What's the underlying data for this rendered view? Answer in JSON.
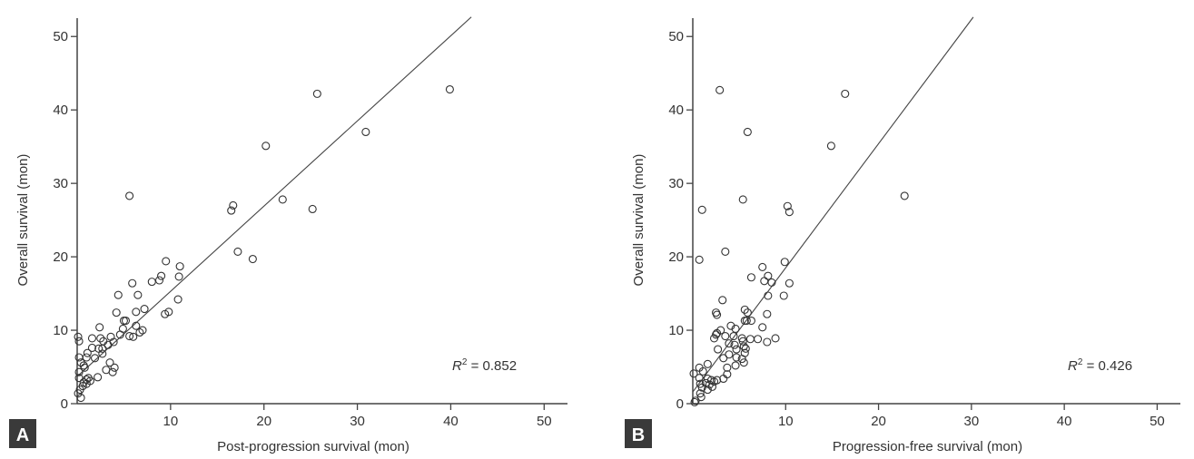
{
  "chart_data": [
    {
      "type": "scatter",
      "panel_label": "A",
      "xlabel": "Post-progression survival (mon)",
      "ylabel": "Overall survival (mon)",
      "xlim": [
        0,
        52.5
      ],
      "ylim": [
        0,
        52.5
      ],
      "xticks": [
        10,
        20,
        30,
        40,
        50
      ],
      "yticks": [
        0,
        10,
        20,
        30,
        40,
        50
      ],
      "annotation": {
        "prefix": "R",
        "sup": "2",
        "text": " = 0.852",
        "value": 0.852
      },
      "fit_line": {
        "intercept": 3.7,
        "slope": 1.16,
        "x_range": [
          0,
          42.2
        ]
      },
      "marker": "open-circle",
      "color": "#333333",
      "points": [
        [
          9.5,
          19.4
        ],
        [
          11.0,
          18.7
        ],
        [
          5.9,
          16.4
        ],
        [
          8.0,
          16.6
        ],
        [
          9.0,
          17.4
        ],
        [
          8.8,
          16.8
        ],
        [
          10.9,
          17.3
        ],
        [
          4.4,
          14.8
        ],
        [
          6.5,
          14.8
        ],
        [
          10.8,
          14.2
        ],
        [
          4.2,
          12.4
        ],
        [
          7.2,
          12.9
        ],
        [
          6.3,
          12.5
        ],
        [
          9.4,
          12.2
        ],
        [
          9.8,
          12.5
        ],
        [
          5.0,
          11.3
        ],
        [
          5.2,
          11.3
        ],
        [
          2.4,
          10.4
        ],
        [
          6.3,
          10.6
        ],
        [
          4.9,
          10.2
        ],
        [
          7.0,
          10.0
        ],
        [
          6.7,
          9.7
        ],
        [
          5.6,
          9.2
        ],
        [
          6.0,
          9.1
        ],
        [
          4.6,
          9.4
        ],
        [
          3.6,
          9.1
        ],
        [
          1.6,
          8.9
        ],
        [
          2.5,
          8.9
        ],
        [
          2.8,
          8.5
        ],
        [
          3.9,
          8.4
        ],
        [
          3.3,
          8.0
        ],
        [
          0.2,
          8.5
        ],
        [
          0.1,
          9.1
        ],
        [
          1.6,
          7.6
        ],
        [
          2.3,
          7.5
        ],
        [
          2.7,
          7.5
        ],
        [
          1.1,
          6.9
        ],
        [
          2.7,
          6.8
        ],
        [
          1.0,
          6.3
        ],
        [
          1.9,
          6.2
        ],
        [
          0.2,
          6.3
        ],
        [
          0.4,
          5.6
        ],
        [
          0.7,
          5.2
        ],
        [
          0.8,
          4.9
        ],
        [
          3.5,
          5.6
        ],
        [
          4.0,
          4.9
        ],
        [
          3.1,
          4.6
        ],
        [
          3.8,
          4.3
        ],
        [
          2.2,
          3.6
        ],
        [
          1.2,
          3.5
        ],
        [
          1.0,
          3.3
        ],
        [
          0.7,
          2.9
        ],
        [
          1.0,
          2.7
        ],
        [
          0.6,
          2.4
        ],
        [
          0.3,
          1.9
        ],
        [
          0.1,
          1.4
        ],
        [
          0.4,
          0.8
        ],
        [
          0.2,
          4.3
        ],
        [
          0.2,
          3.5
        ],
        [
          1.4,
          3.1
        ],
        [
          5.6,
          28.3
        ],
        [
          16.5,
          26.3
        ],
        [
          16.7,
          27.0
        ],
        [
          17.2,
          20.7
        ],
        [
          18.8,
          19.7
        ],
        [
          20.2,
          35.1
        ],
        [
          22.0,
          27.8
        ],
        [
          25.2,
          26.5
        ],
        [
          25.7,
          42.2
        ],
        [
          30.9,
          37.0
        ],
        [
          39.9,
          42.8
        ]
      ]
    },
    {
      "type": "scatter",
      "panel_label": "B",
      "xlabel": "Progression-free survival (mon)",
      "ylabel": "Overall survival (mon)",
      "xlim": [
        0,
        52.5
      ],
      "ylim": [
        0,
        52.5
      ],
      "xticks": [
        10,
        20,
        30,
        40,
        50
      ],
      "yticks": [
        0,
        10,
        20,
        30,
        40,
        50
      ],
      "annotation": {
        "prefix": "R",
        "sup": "2",
        "text": " = 0.426",
        "value": 0.426
      },
      "fit_line": {
        "intercept": 1.6,
        "slope": 1.69,
        "x_range": [
          0,
          30.2
        ]
      },
      "marker": "open-circle",
      "color": "#333333",
      "points": [
        [
          0.7,
          19.6
        ],
        [
          3.5,
          20.7
        ],
        [
          3.2,
          14.1
        ],
        [
          2.5,
          12.4
        ],
        [
          2.6,
          12.1
        ],
        [
          9.9,
          19.3
        ],
        [
          7.5,
          18.6
        ],
        [
          8.1,
          17.4
        ],
        [
          7.7,
          16.7
        ],
        [
          8.5,
          16.5
        ],
        [
          10.4,
          16.4
        ],
        [
          6.3,
          17.2
        ],
        [
          8.1,
          14.7
        ],
        [
          9.8,
          14.7
        ],
        [
          5.6,
          12.8
        ],
        [
          5.9,
          12.4
        ],
        [
          8.0,
          12.2
        ],
        [
          5.6,
          11.3
        ],
        [
          5.8,
          11.3
        ],
        [
          6.3,
          11.3
        ],
        [
          4.1,
          10.6
        ],
        [
          4.6,
          10.2
        ],
        [
          7.5,
          10.4
        ],
        [
          3.0,
          10.0
        ],
        [
          2.6,
          9.6
        ],
        [
          2.5,
          9.4
        ],
        [
          2.3,
          8.9
        ],
        [
          3.5,
          9.2
        ],
        [
          4.4,
          9.2
        ],
        [
          5.3,
          8.9
        ],
        [
          6.2,
          8.8
        ],
        [
          7.0,
          8.8
        ],
        [
          8.9,
          8.9
        ],
        [
          8.0,
          8.4
        ],
        [
          5.4,
          8.5
        ],
        [
          3.9,
          8.2
        ],
        [
          4.5,
          8.0
        ],
        [
          5.5,
          7.8
        ],
        [
          4.7,
          7.4
        ],
        [
          2.7,
          7.4
        ],
        [
          5.7,
          7.5
        ],
        [
          3.9,
          6.7
        ],
        [
          5.6,
          6.9
        ],
        [
          3.3,
          6.2
        ],
        [
          4.7,
          6.3
        ],
        [
          5.3,
          6.1
        ],
        [
          5.5,
          5.6
        ],
        [
          4.6,
          5.2
        ],
        [
          3.7,
          4.9
        ],
        [
          3.7,
          4.0
        ],
        [
          3.3,
          3.4
        ],
        [
          1.6,
          5.4
        ],
        [
          0.7,
          4.9
        ],
        [
          1.1,
          4.4
        ],
        [
          0.1,
          4.1
        ],
        [
          0.7,
          3.5
        ],
        [
          1.6,
          3.4
        ],
        [
          2.0,
          3.2
        ],
        [
          2.3,
          3.0
        ],
        [
          2.6,
          3.2
        ],
        [
          0.8,
          2.7
        ],
        [
          1.4,
          2.8
        ],
        [
          1.8,
          2.6
        ],
        [
          1.0,
          2.2
        ],
        [
          2.1,
          2.3
        ],
        [
          1.6,
          1.9
        ],
        [
          0.8,
          1.4
        ],
        [
          0.9,
          0.9
        ],
        [
          0.3,
          0.4
        ],
        [
          0.2,
          0.2
        ],
        [
          2.9,
          42.7
        ],
        [
          16.4,
          42.2
        ],
        [
          5.9,
          37.0
        ],
        [
          14.9,
          35.1
        ],
        [
          10.2,
          26.9
        ],
        [
          10.4,
          26.1
        ],
        [
          5.4,
          27.8
        ],
        [
          1.0,
          26.4
        ],
        [
          22.8,
          28.3
        ]
      ]
    }
  ]
}
